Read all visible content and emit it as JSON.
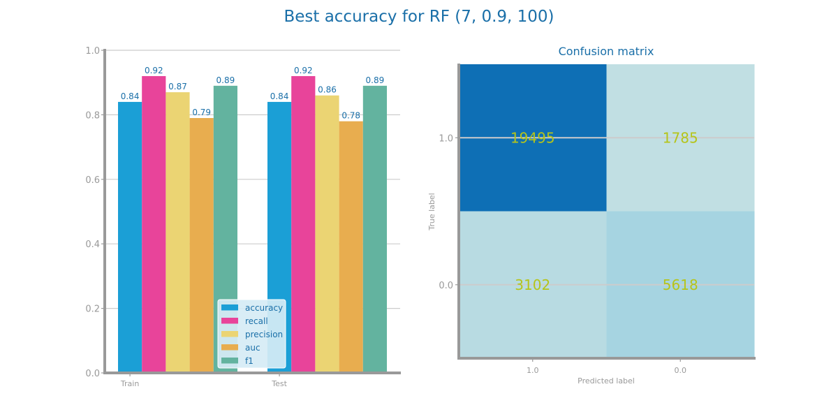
{
  "figure": {
    "suptitle": "Best accuracy for RF (7, 0.9, 100)"
  },
  "colors": {
    "title": "#1a6fa8",
    "axis": "#999999",
    "tick_text": "#999999",
    "grid": "#cccccc",
    "data_label": "#1a6fa8",
    "legend_text": "#1a6fa8",
    "legend_bg": "#d6ecf5",
    "cm_text": "#b5c41a"
  },
  "chart_data": [
    {
      "type": "bar",
      "title": "",
      "xlabel": "",
      "ylabel": "",
      "categories": [
        "Train",
        "Test"
      ],
      "ylim": [
        0,
        1.0
      ],
      "yticks": [
        "0.0",
        "0.2",
        "0.4",
        "0.6",
        "0.8",
        "1.0"
      ],
      "grid": true,
      "legend_position": "lower-right",
      "series": [
        {
          "name": "accuracy",
          "color": "#1b9fd6",
          "values": [
            0.84,
            0.84
          ],
          "labels": [
            "0.84",
            "0.84"
          ]
        },
        {
          "name": "recall",
          "color": "#e8449a",
          "values": [
            0.92,
            0.92
          ],
          "labels": [
            "0.92",
            "0.92"
          ]
        },
        {
          "name": "precision",
          "color": "#ebd473",
          "values": [
            0.87,
            0.86
          ],
          "labels": [
            "0.87",
            "0.86"
          ]
        },
        {
          "name": "auc",
          "color": "#e8ad4f",
          "values": [
            0.79,
            0.78
          ],
          "labels": [
            "0.79",
            "0.78"
          ]
        },
        {
          "name": "f1",
          "color": "#63b39f",
          "values": [
            0.89,
            0.89
          ],
          "labels": [
            "0.89",
            "0.89"
          ]
        }
      ]
    },
    {
      "type": "heatmap",
      "title": "Confusion matrix",
      "xlabel": "Predicted label",
      "ylabel": "True label",
      "x_categories": [
        "1.0",
        "0.0"
      ],
      "y_categories": [
        "1.0",
        "0.0"
      ],
      "values": [
        [
          19495,
          1785
        ],
        [
          3102,
          5618
        ]
      ],
      "cell_labels": [
        [
          "19495",
          "1785"
        ],
        [
          "3102",
          "5618"
        ]
      ],
      "colormap": [
        "#c1dfe3",
        "#0e6fb5"
      ]
    }
  ]
}
